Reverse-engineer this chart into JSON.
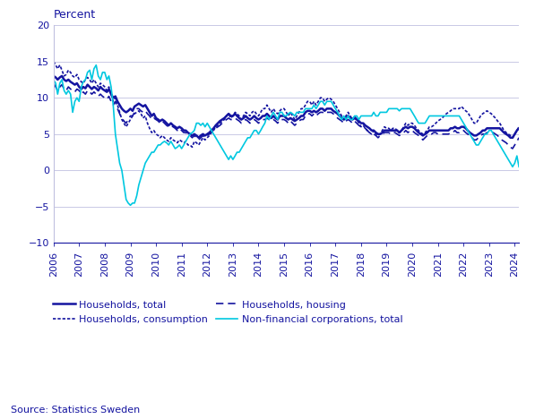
{
  "ylabel": "Percent",
  "source": "Source: Statistics Sweden",
  "ylim": [
    -10,
    20
  ],
  "yticks": [
    -10,
    -5,
    0,
    5,
    10,
    15,
    20
  ],
  "background_color": "#ffffff",
  "grid_color": "#c0c0e0",
  "dark_blue": "#1414a0",
  "cyan": "#00c8e0",
  "households_total": [
    13.0,
    12.8,
    12.5,
    12.8,
    13.0,
    12.5,
    12.3,
    12.5,
    12.2,
    12.0,
    11.8,
    12.0,
    11.5,
    11.2,
    11.5,
    11.3,
    11.8,
    11.5,
    11.2,
    11.5,
    11.3,
    11.0,
    11.5,
    11.2,
    11.0,
    10.8,
    11.2,
    10.5,
    10.0,
    10.2,
    9.5,
    9.0,
    8.5,
    8.2,
    8.0,
    8.2,
    8.5,
    8.2,
    8.8,
    9.0,
    9.2,
    9.0,
    8.8,
    9.0,
    8.5,
    8.0,
    7.5,
    7.8,
    7.2,
    7.0,
    6.8,
    7.0,
    6.8,
    6.5,
    6.2,
    6.5,
    6.2,
    6.0,
    5.8,
    6.0,
    5.8,
    5.5,
    5.5,
    5.2,
    5.0,
    4.8,
    5.0,
    4.8,
    4.5,
    4.8,
    5.0,
    4.8,
    5.0,
    5.2,
    5.5,
    5.8,
    6.2,
    6.5,
    6.8,
    7.0,
    7.2,
    7.5,
    7.8,
    7.5,
    7.5,
    7.8,
    7.5,
    7.2,
    7.0,
    7.2,
    7.5,
    7.2,
    7.0,
    7.2,
    7.5,
    7.2,
    7.0,
    7.2,
    7.5,
    7.5,
    7.8,
    7.5,
    7.2,
    7.5,
    7.2,
    7.0,
    7.5,
    7.5,
    7.5,
    7.2,
    7.0,
    7.2,
    7.0,
    6.8,
    7.0,
    7.2,
    7.5,
    7.5,
    8.0,
    8.2,
    8.2,
    8.0,
    8.2,
    8.0,
    8.2,
    8.5,
    8.5,
    8.2,
    8.5,
    8.5,
    8.5,
    8.2,
    8.0,
    7.8,
    7.5,
    7.2,
    7.0,
    7.2,
    7.5,
    7.2,
    7.0,
    7.2,
    7.0,
    6.8,
    6.5,
    6.5,
    6.2,
    6.0,
    5.8,
    5.5,
    5.5,
    5.2,
    5.0,
    5.0,
    5.2,
    5.5,
    5.5,
    5.5,
    5.5,
    5.5,
    5.5,
    5.5,
    5.2,
    5.5,
    5.8,
    6.0,
    5.8,
    6.0,
    6.0,
    5.8,
    5.5,
    5.2,
    5.0,
    4.8,
    5.0,
    5.2,
    5.5,
    5.5,
    5.5,
    5.5,
    5.5,
    5.5,
    5.5,
    5.5,
    5.5,
    5.5,
    5.8,
    5.8,
    6.0,
    5.8,
    5.8,
    6.0,
    6.0,
    5.8,
    5.5,
    5.2,
    5.0,
    4.8,
    4.8,
    5.0,
    5.2,
    5.5,
    5.5,
    5.8,
    5.8,
    5.8,
    5.8,
    5.8,
    5.8,
    5.8,
    5.5,
    5.2,
    5.0,
    4.8,
    4.5,
    4.5,
    5.0,
    5.5,
    5.8
  ],
  "households_consumption": [
    15.0,
    14.5,
    14.0,
    14.5,
    13.8,
    13.0,
    13.2,
    13.8,
    13.5,
    13.0,
    12.8,
    13.2,
    12.5,
    12.2,
    12.0,
    12.5,
    12.8,
    12.5,
    12.0,
    12.5,
    12.0,
    11.5,
    12.0,
    11.8,
    11.5,
    11.0,
    11.5,
    10.5,
    9.5,
    10.0,
    9.0,
    8.0,
    7.0,
    6.5,
    6.0,
    6.5,
    7.0,
    7.5,
    7.8,
    8.0,
    8.2,
    7.8,
    7.2,
    7.5,
    6.5,
    5.8,
    5.2,
    5.5,
    5.0,
    4.8,
    4.5,
    4.8,
    4.5,
    4.2,
    4.0,
    4.5,
    4.2,
    4.0,
    3.8,
    4.2,
    4.0,
    3.8,
    4.0,
    3.5,
    3.5,
    3.2,
    4.0,
    3.8,
    3.5,
    4.0,
    4.5,
    4.2,
    4.5,
    4.8,
    5.2,
    5.5,
    6.0,
    6.2,
    6.5,
    6.8,
    7.0,
    7.5,
    7.8,
    7.2,
    7.5,
    8.0,
    7.8,
    7.5,
    7.0,
    7.5,
    8.0,
    7.8,
    7.5,
    8.0,
    8.2,
    7.8,
    7.5,
    8.0,
    8.5,
    8.5,
    9.0,
    8.5,
    8.0,
    8.5,
    8.0,
    7.8,
    8.2,
    8.5,
    8.5,
    8.0,
    7.5,
    8.0,
    7.5,
    7.0,
    7.5,
    8.0,
    8.5,
    8.5,
    9.0,
    9.5,
    9.5,
    9.0,
    9.5,
    9.0,
    9.5,
    10.0,
    10.0,
    9.5,
    9.8,
    10.0,
    9.8,
    9.5,
    9.0,
    8.5,
    8.0,
    7.5,
    7.0,
    7.5,
    8.0,
    7.5,
    7.0,
    7.5,
    7.0,
    6.5,
    6.0,
    6.2,
    5.8,
    5.5,
    5.2,
    5.0,
    5.5,
    5.0,
    4.8,
    5.0,
    5.5,
    6.0,
    5.8,
    5.8,
    5.5,
    5.8,
    5.8,
    5.5,
    5.2,
    5.5,
    6.0,
    6.5,
    6.2,
    6.5,
    6.5,
    6.2,
    5.8,
    5.5,
    5.2,
    5.0,
    5.2,
    5.5,
    6.0,
    6.0,
    6.2,
    6.5,
    6.8,
    7.0,
    7.2,
    7.5,
    7.8,
    8.0,
    8.2,
    8.5,
    8.5,
    8.5,
    8.5,
    8.8,
    8.5,
    8.2,
    8.0,
    7.5,
    7.0,
    6.5,
    6.5,
    7.0,
    7.5,
    7.8,
    8.0,
    8.2,
    8.0,
    7.8,
    7.5,
    7.2,
    6.8,
    6.5,
    6.0,
    5.5,
    5.2,
    5.0,
    4.8,
    4.5,
    5.0,
    5.5,
    6.0
  ],
  "households_housing": [
    12.0,
    11.5,
    11.0,
    11.5,
    11.8,
    11.2,
    11.0,
    11.5,
    11.2,
    11.0,
    10.8,
    11.2,
    11.0,
    10.5,
    10.8,
    10.5,
    11.0,
    10.8,
    10.5,
    10.8,
    10.5,
    10.2,
    10.5,
    10.2,
    10.0,
    9.8,
    10.2,
    9.5,
    9.0,
    9.5,
    8.5,
    7.8,
    7.2,
    6.8,
    6.5,
    7.0,
    7.5,
    7.5,
    8.0,
    8.5,
    8.5,
    8.2,
    8.0,
    8.2,
    7.8,
    7.5,
    7.0,
    7.2,
    7.0,
    6.8,
    6.5,
    6.8,
    6.5,
    6.2,
    6.0,
    6.2,
    6.0,
    5.8,
    5.5,
    5.8,
    5.5,
    5.2,
    5.2,
    5.0,
    4.8,
    4.5,
    4.8,
    4.5,
    4.2,
    4.5,
    4.8,
    4.5,
    4.8,
    5.0,
    5.2,
    5.5,
    5.8,
    6.0,
    6.2,
    6.5,
    6.8,
    7.0,
    7.2,
    7.0,
    7.0,
    7.2,
    7.0,
    6.8,
    6.5,
    6.8,
    7.0,
    6.8,
    6.5,
    6.8,
    7.0,
    6.8,
    6.5,
    6.8,
    7.0,
    7.0,
    7.2,
    7.0,
    6.8,
    7.0,
    6.8,
    6.5,
    7.0,
    7.0,
    7.0,
    6.8,
    6.5,
    6.8,
    6.5,
    6.2,
    6.5,
    6.8,
    7.0,
    7.0,
    7.5,
    7.8,
    7.8,
    7.5,
    7.8,
    7.5,
    7.8,
    8.0,
    8.0,
    7.8,
    8.0,
    8.0,
    8.0,
    7.8,
    7.5,
    7.2,
    7.0,
    6.8,
    6.5,
    6.8,
    7.0,
    6.8,
    6.5,
    6.8,
    6.5,
    6.2,
    6.0,
    6.0,
    5.8,
    5.5,
    5.2,
    5.0,
    5.0,
    4.8,
    4.5,
    4.8,
    5.0,
    5.2,
    5.2,
    5.2,
    5.0,
    5.2,
    5.2,
    5.0,
    4.8,
    5.0,
    5.2,
    5.5,
    5.2,
    5.5,
    5.5,
    5.2,
    5.0,
    4.8,
    4.5,
    4.2,
    4.5,
    4.8,
    5.0,
    5.0,
    5.2,
    5.2,
    5.0,
    5.0,
    5.0,
    5.0,
    5.0,
    5.0,
    5.2,
    5.2,
    5.5,
    5.2,
    5.2,
    5.5,
    5.5,
    5.2,
    5.0,
    4.8,
    4.5,
    4.2,
    4.2,
    4.5,
    4.8,
    5.0,
    5.0,
    5.2,
    5.2,
    5.2,
    5.2,
    5.0,
    4.8,
    4.5,
    4.2,
    4.0,
    3.8,
    3.5,
    3.2,
    3.0,
    3.5,
    4.0,
    4.5
  ],
  "nonfinancial": [
    12.5,
    12.0,
    10.5,
    12.0,
    12.5,
    11.0,
    10.5,
    11.0,
    10.5,
    8.0,
    9.5,
    10.0,
    9.5,
    11.5,
    12.2,
    12.5,
    13.5,
    13.8,
    12.5,
    14.0,
    14.5,
    13.0,
    12.5,
    13.5,
    13.5,
    12.5,
    13.0,
    11.5,
    9.0,
    5.0,
    3.0,
    1.0,
    0.0,
    -2.0,
    -4.0,
    -4.5,
    -4.8,
    -4.5,
    -4.5,
    -3.5,
    -2.0,
    -1.0,
    0.0,
    1.0,
    1.5,
    2.0,
    2.5,
    2.5,
    3.0,
    3.5,
    3.5,
    3.8,
    4.0,
    3.8,
    3.5,
    4.0,
    3.5,
    3.0,
    3.2,
    3.5,
    3.0,
    3.5,
    4.0,
    4.5,
    5.0,
    5.2,
    5.5,
    6.5,
    6.5,
    6.2,
    6.5,
    6.0,
    6.5,
    6.0,
    5.5,
    5.0,
    4.5,
    4.0,
    3.5,
    3.0,
    2.5,
    2.0,
    1.5,
    2.0,
    1.5,
    2.0,
    2.5,
    2.5,
    3.0,
    3.5,
    4.0,
    4.5,
    4.5,
    5.0,
    5.5,
    5.5,
    5.0,
    5.5,
    6.0,
    6.5,
    7.5,
    7.0,
    7.5,
    8.0,
    7.5,
    7.0,
    8.0,
    8.0,
    7.5,
    7.5,
    7.8,
    8.0,
    7.8,
    7.5,
    8.0,
    8.0,
    8.0,
    8.0,
    8.5,
    8.5,
    8.5,
    8.5,
    9.0,
    8.5,
    9.0,
    9.5,
    9.5,
    9.0,
    9.5,
    9.5,
    9.5,
    9.0,
    8.5,
    8.0,
    7.5,
    7.0,
    7.5,
    7.0,
    7.5,
    7.0,
    7.0,
    7.5,
    7.5,
    7.0,
    7.5,
    7.5,
    7.5,
    7.5,
    7.5,
    7.5,
    8.0,
    7.5,
    7.5,
    8.0,
    8.0,
    8.0,
    8.0,
    8.5,
    8.5,
    8.5,
    8.5,
    8.5,
    8.2,
    8.5,
    8.5,
    8.5,
    8.5,
    8.5,
    8.0,
    7.5,
    7.0,
    6.5,
    6.5,
    6.5,
    6.5,
    7.0,
    7.5,
    7.5,
    7.5,
    7.5,
    7.5,
    7.5,
    7.5,
    7.5,
    7.5,
    7.5,
    7.5,
    7.5,
    7.5,
    7.5,
    7.5,
    7.0,
    6.5,
    6.0,
    5.5,
    5.0,
    4.5,
    4.0,
    3.5,
    3.5,
    4.0,
    4.5,
    5.0,
    5.0,
    5.5,
    5.5,
    5.0,
    4.5,
    4.0,
    3.5,
    3.0,
    2.5,
    2.0,
    1.5,
    1.0,
    0.5,
    1.0,
    2.0,
    0.5
  ]
}
